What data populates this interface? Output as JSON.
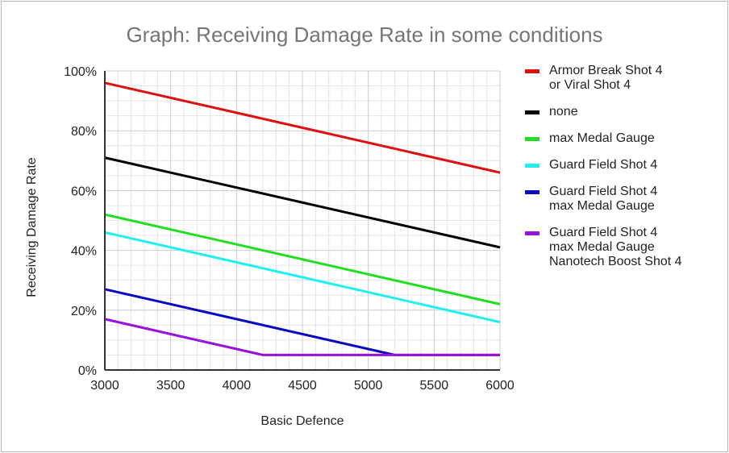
{
  "chart_data": {
    "type": "line",
    "title": "Graph: Receiving Damage Rate in some conditions",
    "xlabel": "Basic Defence",
    "ylabel": "Receiving Damage Rate",
    "xlim": [
      3000,
      6000
    ],
    "ylim": [
      0,
      100
    ],
    "x_ticks": [
      "3000",
      "3500",
      "4000",
      "4500",
      "5000",
      "5500",
      "6000"
    ],
    "x_tick_values": [
      3000,
      3500,
      4000,
      4500,
      5000,
      5500,
      6000
    ],
    "y_ticks": [
      "0%",
      "20%",
      "40%",
      "60%",
      "80%",
      "100%"
    ],
    "y_tick_values": [
      0,
      20,
      40,
      60,
      80,
      100
    ],
    "grid": true,
    "x_minor_step": 100,
    "y_minor_step": 5,
    "legend_position": "right",
    "series": [
      {
        "name": "Armor Break Shot 4 or Viral Shot 4",
        "lines": [
          "Armor Break Shot 4",
          "or Viral Shot 4"
        ],
        "color": "#dd1111",
        "x": [
          3000,
          6000
        ],
        "y": [
          96,
          66
        ]
      },
      {
        "name": "none",
        "lines": [
          "none"
        ],
        "color": "#000000",
        "x": [
          3000,
          6000
        ],
        "y": [
          71,
          41
        ]
      },
      {
        "name": "max Medal Gauge",
        "lines": [
          "max Medal Gauge"
        ],
        "color": "#22dd22",
        "x": [
          3000,
          6000
        ],
        "y": [
          52,
          22
        ]
      },
      {
        "name": "Guard Field Shot 4",
        "lines": [
          "Guard Field Shot 4"
        ],
        "color": "#22eeee",
        "x": [
          3000,
          6000
        ],
        "y": [
          46,
          16
        ]
      },
      {
        "name": "Guard Field Shot 4 max Medal Gauge",
        "lines": [
          "Guard Field Shot 4",
          "max Medal Gauge"
        ],
        "color": "#0a0ac0",
        "x": [
          3000,
          5200,
          6000
        ],
        "y": [
          27,
          5,
          5
        ]
      },
      {
        "name": "Guard Field Shot 4 max Medal Gauge Nanotech Boost Shot 4",
        "lines": [
          "Guard Field Shot 4",
          "max Medal Gauge",
          "Nanotech Boost Shot 4"
        ],
        "color": "#9911dd",
        "x": [
          3000,
          4200,
          6000
        ],
        "y": [
          17,
          5,
          5
        ]
      }
    ]
  }
}
